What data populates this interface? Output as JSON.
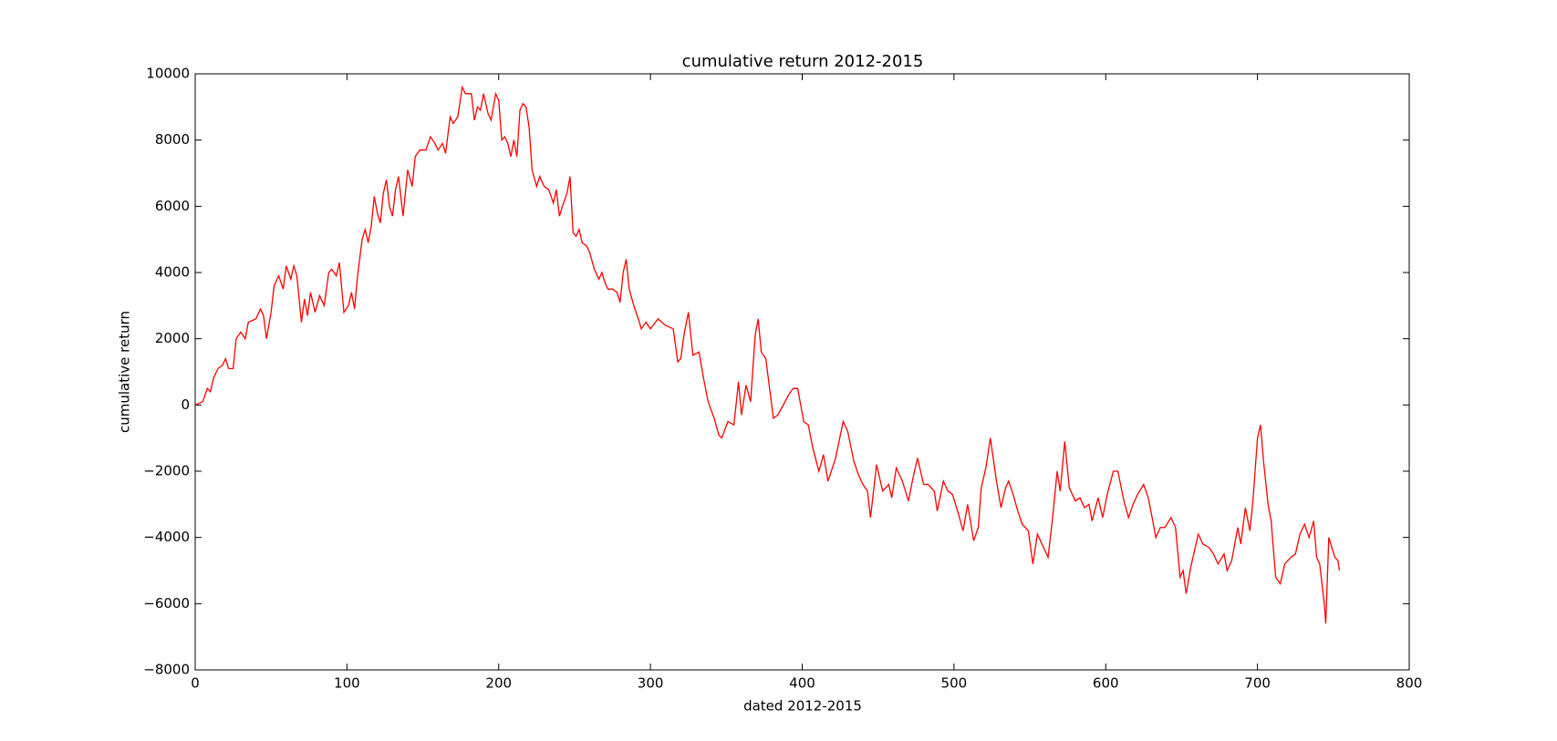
{
  "chart_data": {
    "type": "line",
    "title": "cumulative return 2012-2015",
    "xlabel": "dated 2012-2015",
    "ylabel": "cumulative return",
    "color": "#ff0000",
    "xlim": [
      0,
      800
    ],
    "xticks": [
      0,
      100,
      200,
      300,
      400,
      500,
      600,
      700,
      800
    ],
    "ylim": [
      -8000,
      10000
    ],
    "yticks": [
      {
        "value": -8000,
        "label": "−8000"
      },
      {
        "value": -6000,
        "label": "−6000"
      },
      {
        "value": -4000,
        "label": "−4000"
      },
      {
        "value": -2000,
        "label": "−2000"
      },
      0,
      2000,
      4000,
      6000,
      8000,
      10000
    ],
    "grid": false,
    "x": [
      0,
      5,
      8,
      10,
      12,
      15,
      18,
      20,
      22,
      25,
      27,
      30,
      33,
      35,
      40,
      43,
      45,
      47,
      50,
      52,
      55,
      58,
      60,
      63,
      65,
      67,
      70,
      72,
      74,
      76,
      79,
      82,
      85,
      88,
      90,
      93,
      95,
      98,
      101,
      103,
      105,
      107,
      110,
      112,
      114,
      116,
      118,
      120,
      122,
      124,
      126,
      128,
      130,
      132,
      134,
      137,
      140,
      143,
      145,
      148,
      152,
      155,
      158,
      160,
      163,
      165,
      168,
      170,
      173,
      176,
      178,
      182,
      184,
      186,
      188,
      190,
      193,
      195,
      198,
      200,
      202,
      204,
      206,
      208,
      210,
      212,
      214,
      216,
      218,
      220,
      222,
      225,
      227,
      230,
      233,
      236,
      238,
      240,
      242,
      245,
      247,
      249,
      251,
      253,
      255,
      258,
      260,
      263,
      266,
      268,
      270,
      272,
      275,
      278,
      280,
      282,
      284,
      286,
      289,
      292,
      294,
      297,
      300,
      305,
      310,
      315,
      318,
      320,
      322,
      325,
      328,
      332,
      335,
      338,
      342,
      345,
      347,
      351,
      355,
      358,
      360,
      363,
      366,
      369,
      371,
      373,
      376,
      381,
      384,
      391,
      394,
      397,
      401,
      404,
      407,
      411,
      414,
      417,
      422,
      427,
      430,
      434,
      437,
      440,
      443,
      445,
      449,
      453,
      457,
      459,
      462,
      466,
      470,
      473,
      476,
      480,
      483,
      487,
      489,
      493,
      496,
      499,
      503,
      506,
      509,
      513,
      516,
      518,
      521,
      524,
      528,
      531,
      534,
      536,
      539,
      542,
      545,
      549,
      552,
      555,
      559,
      562,
      565,
      568,
      570,
      573,
      576,
      580,
      583,
      586,
      589,
      591,
      595,
      598,
      601,
      605,
      608,
      612,
      615,
      618,
      621,
      625,
      628,
      631,
      633,
      636,
      639,
      643,
      646,
      649,
      651,
      653,
      656,
      659,
      661,
      664,
      668,
      671,
      674,
      678,
      680,
      683,
      687,
      689,
      692,
      695,
      697,
      700,
      702,
      704,
      707,
      709,
      712,
      715,
      718,
      722,
      725,
      728,
      731,
      734,
      737,
      739,
      741,
      744,
      745,
      747,
      751,
      753,
      754
    ],
    "values": [
      0,
      100,
      500,
      400,
      800,
      1100,
      1200,
      1400,
      1100,
      1100,
      2000,
      2200,
      2000,
      2500,
      2600,
      2900,
      2700,
      2000,
      2800,
      3600,
      3900,
      3500,
      4200,
      3800,
      4200,
      3900,
      2500,
      3200,
      2700,
      3400,
      2800,
      3300,
      3000,
      4000,
      4100,
      3900,
      4300,
      2800,
      3000,
      3400,
      2900,
      3900,
      5000,
      5300,
      4900,
      5400,
      6300,
      5800,
      5500,
      6400,
      6800,
      6000,
      5700,
      6500,
      6900,
      5700,
      7100,
      6600,
      7500,
      7700,
      7700,
      8100,
      7900,
      7700,
      7900,
      7600,
      8700,
      8500,
      8700,
      9600,
      9400,
      9400,
      8600,
      9000,
      8900,
      9400,
      8800,
      8600,
      9400,
      9200,
      8000,
      8100,
      7900,
      7500,
      8000,
      7500,
      8900,
      9100,
      9000,
      8400,
      7100,
      6600,
      6900,
      6600,
      6500,
      6100,
      6500,
      5700,
      6000,
      6400,
      6900,
      5200,
      5100,
      5300,
      4900,
      4800,
      4600,
      4100,
      3800,
      4000,
      3700,
      3500,
      3500,
      3400,
      3100,
      4000,
      4400,
      3500,
      3000,
      2600,
      2300,
      2500,
      2300,
      2600,
      2400,
      2300,
      1300,
      1400,
      2100,
      2800,
      1500,
      1600,
      800,
      100,
      -400,
      -900,
      -1000,
      -500,
      -600,
      700,
      -300,
      600,
      100,
      2100,
      2600,
      1600,
      1400,
      -400,
      -300,
      300,
      500,
      500,
      -500,
      -600,
      -1300,
      -2000,
      -1500,
      -2300,
      -1600,
      -500,
      -800,
      -1700,
      -2100,
      -2400,
      -2600,
      -3400,
      -1800,
      -2600,
      -2400,
      -2800,
      -1900,
      -2300,
      -2900,
      -2200,
      -1600,
      -2400,
      -2400,
      -2600,
      -3200,
      -2300,
      -2600,
      -2700,
      -3300,
      -3800,
      -3000,
      -4100,
      -3700,
      -2500,
      -1900,
      -1000,
      -2300,
      -3100,
      -2500,
      -2300,
      -2700,
      -3200,
      -3600,
      -3800,
      -4800,
      -3900,
      -4300,
      -4600,
      -3400,
      -2000,
      -2600,
      -1100,
      -2500,
      -2900,
      -2800,
      -3100,
      -3000,
      -3500,
      -2800,
      -3400,
      -2700,
      -2000,
      -2000,
      -2900,
      -3400,
      -3000,
      -2700,
      -2400,
      -2800,
      -3500,
      -4000,
      -3700,
      -3700,
      -3400,
      -3700,
      -5200,
      -5000,
      -5700,
      -4900,
      -4300,
      -3900,
      -4200,
      -4300,
      -4500,
      -4800,
      -4500,
      -5000,
      -4700,
      -3700,
      -4200,
      -3100,
      -3800,
      -2900,
      -1000,
      -600,
      -1700,
      -3000,
      -3500,
      -5200,
      -5400,
      -4800,
      -4600,
      -4500,
      -3900,
      -3600,
      -4000,
      -3500,
      -4600,
      -4800,
      -6000,
      -6600,
      -4000,
      -4600,
      -4700,
      -5000
    ]
  }
}
